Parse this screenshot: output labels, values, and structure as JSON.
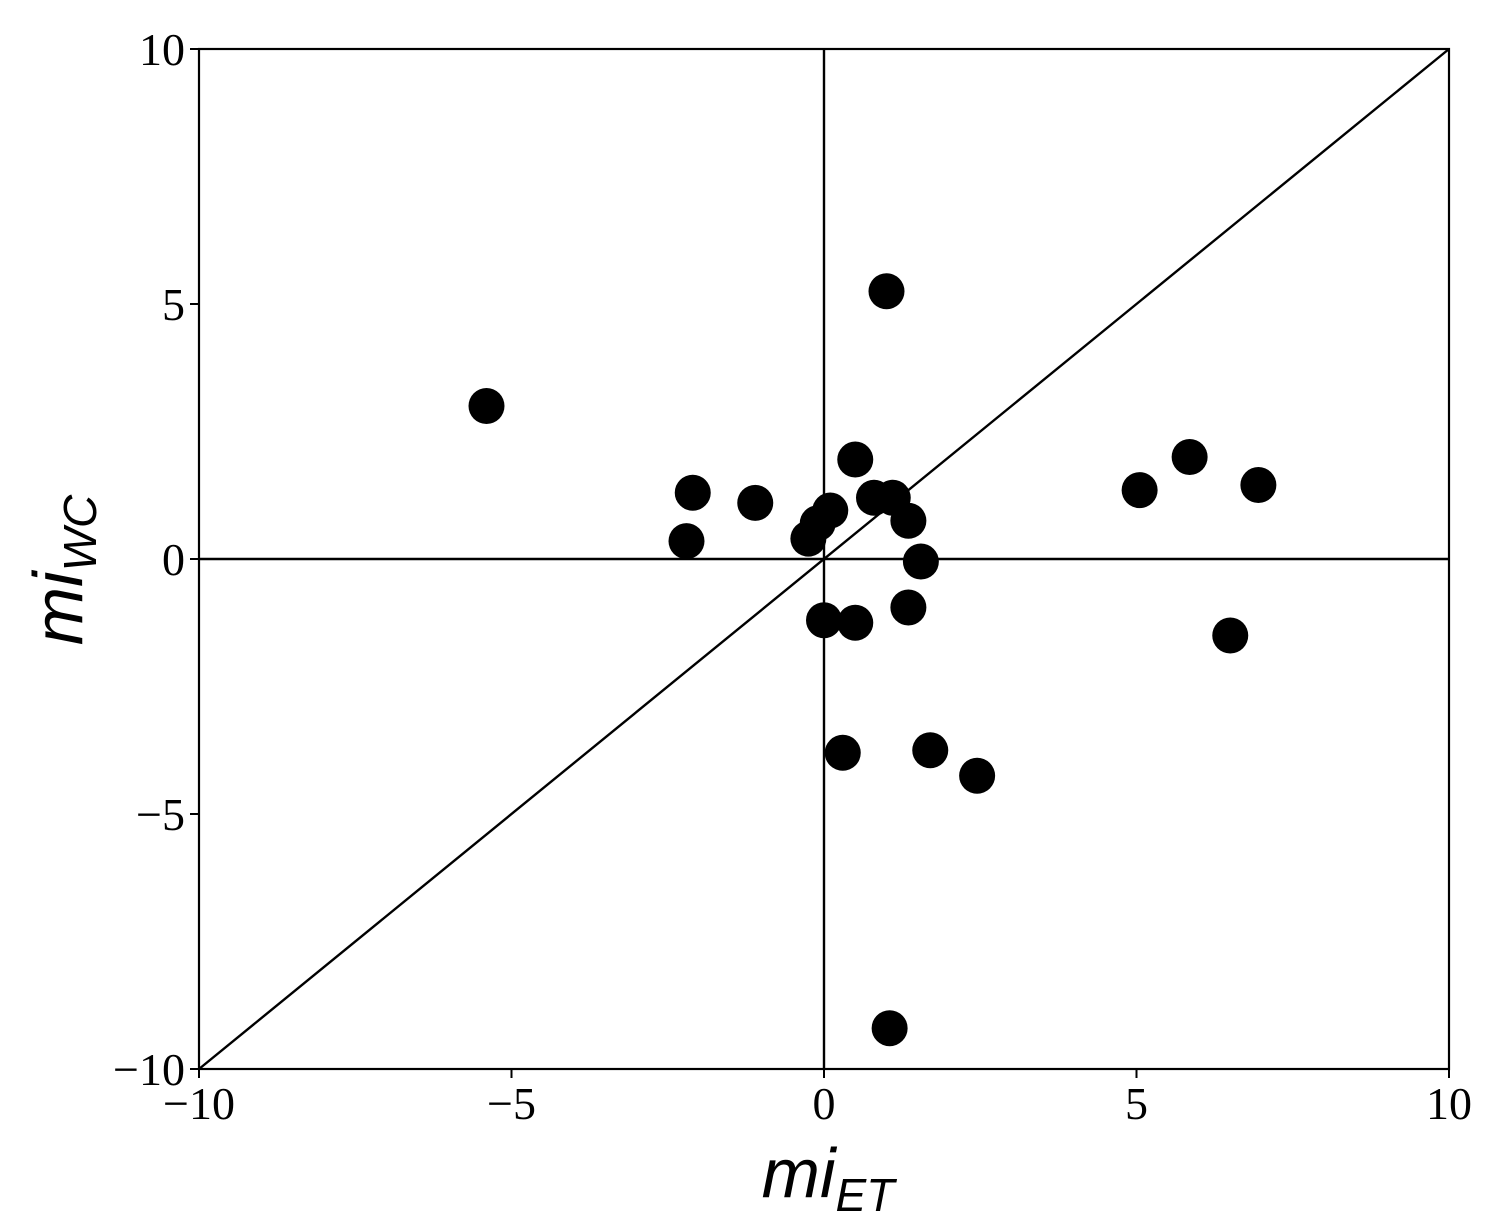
{
  "chart_data": {
    "type": "scatter",
    "title": "",
    "xlabel": {
      "main": "mi",
      "subscript": "ET"
    },
    "ylabel": {
      "main": "mi",
      "subscript": "WC"
    },
    "xlim": [
      -10,
      10
    ],
    "ylim": [
      -10,
      10
    ],
    "xticks": [
      -10,
      -5,
      0,
      5,
      10
    ],
    "yticks": [
      -10,
      -5,
      0,
      5,
      10
    ],
    "xtick_labels": [
      "−10",
      "−5",
      "0",
      "5",
      "10"
    ],
    "ytick_labels": [
      "−10",
      "−5",
      "0",
      "5",
      "10"
    ],
    "grid": false,
    "reference_lines": [
      {
        "type": "horizontal",
        "y": 0
      },
      {
        "type": "vertical",
        "x": 0
      },
      {
        "type": "diagonal",
        "from": [
          -10,
          -10
        ],
        "to": [
          10,
          10
        ]
      }
    ],
    "marker_color": "#000000",
    "points": [
      {
        "x": -5.4,
        "y": 3.0
      },
      {
        "x": -2.1,
        "y": 1.3
      },
      {
        "x": -2.2,
        "y": 0.35
      },
      {
        "x": -1.1,
        "y": 1.1
      },
      {
        "x": -0.25,
        "y": 0.4
      },
      {
        "x": -0.1,
        "y": 0.7
      },
      {
        "x": 0.1,
        "y": 0.95
      },
      {
        "x": 0.5,
        "y": 1.95
      },
      {
        "x": 0.8,
        "y": 1.2
      },
      {
        "x": 1.1,
        "y": 1.2
      },
      {
        "x": 1.35,
        "y": 0.75
      },
      {
        "x": 1.55,
        "y": -0.05
      },
      {
        "x": 1.0,
        "y": 5.25
      },
      {
        "x": 1.35,
        "y": -0.95
      },
      {
        "x": 0.0,
        "y": -1.2
      },
      {
        "x": 0.5,
        "y": -1.25
      },
      {
        "x": 0.3,
        "y": -3.8
      },
      {
        "x": 1.7,
        "y": -3.75
      },
      {
        "x": 2.45,
        "y": -4.25
      },
      {
        "x": 1.05,
        "y": -9.2
      },
      {
        "x": 5.05,
        "y": 1.35
      },
      {
        "x": 5.85,
        "y": 2.0
      },
      {
        "x": 6.95,
        "y": 1.45
      },
      {
        "x": 6.5,
        "y": -1.5
      }
    ]
  }
}
